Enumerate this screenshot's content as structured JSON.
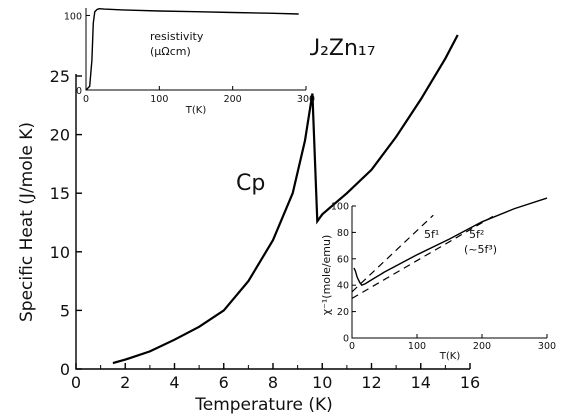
{
  "chart_data": [
    {
      "type": "line",
      "xlabel": "Temperature (K)",
      "ylabel": "Specific Heat (J/mole K)",
      "xlim": [
        0,
        16
      ],
      "ylim": [
        0,
        25
      ],
      "x_ticks": [
        "0",
        "2",
        "4",
        "6",
        "8",
        "10",
        "12",
        "14",
        "16"
      ],
      "y_ticks": [
        "0",
        "5",
        "10",
        "15",
        "20",
        "25"
      ],
      "compound_label": "U₂Zn₁₇",
      "series": [
        {
          "name": "Cp",
          "x": [
            1.5,
            2,
            3,
            4,
            5,
            6,
            7,
            8,
            8.8,
            9.3,
            9.6,
            9.8,
            10,
            11,
            12,
            13,
            14,
            15,
            15.5
          ],
          "y": [
            0.5,
            0.8,
            1.5,
            2.5,
            3.6,
            5.0,
            7.5,
            11.0,
            15.0,
            19.5,
            23.5,
            12.6,
            13.2,
            15.0,
            17.0,
            19.8,
            23.0,
            26.5,
            28.5
          ]
        }
      ],
      "colors": {
        "line": "#000000"
      }
    },
    {
      "type": "line",
      "panel": "inset-top-left",
      "annotation": [
        "resistivity",
        "(μΩcm)"
      ],
      "xlabel": "T(K)",
      "xlim": [
        0,
        300
      ],
      "ylim": [
        0,
        110
      ],
      "x_ticks": [
        "0",
        "100",
        "200",
        "300"
      ],
      "y_ticks": [
        "0",
        "100"
      ],
      "series": [
        {
          "x": [
            0,
            5,
            8,
            10,
            12,
            15,
            18,
            25,
            50,
            100,
            150,
            200,
            250,
            290
          ],
          "y": [
            0,
            5,
            40,
            90,
            105,
            108,
            109,
            108.5,
            107.5,
            106,
            105,
            104,
            103,
            102
          ]
        }
      ]
    },
    {
      "type": "line",
      "panel": "inset-bottom-right",
      "ylabel": "χ⁻¹(mole/emu)",
      "xlabel": "T(K)",
      "xlim": [
        0,
        300
      ],
      "ylim": [
        0,
        100
      ],
      "x_ticks": [
        "0",
        "100",
        "200",
        "300"
      ],
      "y_ticks": [
        "0",
        "20",
        "40",
        "60",
        "80",
        "100"
      ],
      "series": [
        {
          "x": [
            3,
            5,
            8,
            12,
            15,
            20,
            30,
            50,
            100,
            150,
            200,
            250,
            300
          ],
          "y": [
            53,
            51,
            46,
            42,
            40,
            41,
            44,
            50,
            63,
            75,
            88,
            98,
            106
          ]
        },
        {
          "name": "5f¹",
          "style": "dashed",
          "x": [
            0,
            125
          ],
          "y": [
            35,
            93
          ]
        },
        {
          "name": "5f² (~5f³)",
          "style": "dashed",
          "x": [
            0,
            220
          ],
          "y": [
            30,
            93
          ]
        }
      ],
      "line_labels": [
        {
          "text": "5f¹"
        },
        {
          "text": "5f²"
        },
        {
          "text": "(~5f³)"
        }
      ]
    }
  ]
}
